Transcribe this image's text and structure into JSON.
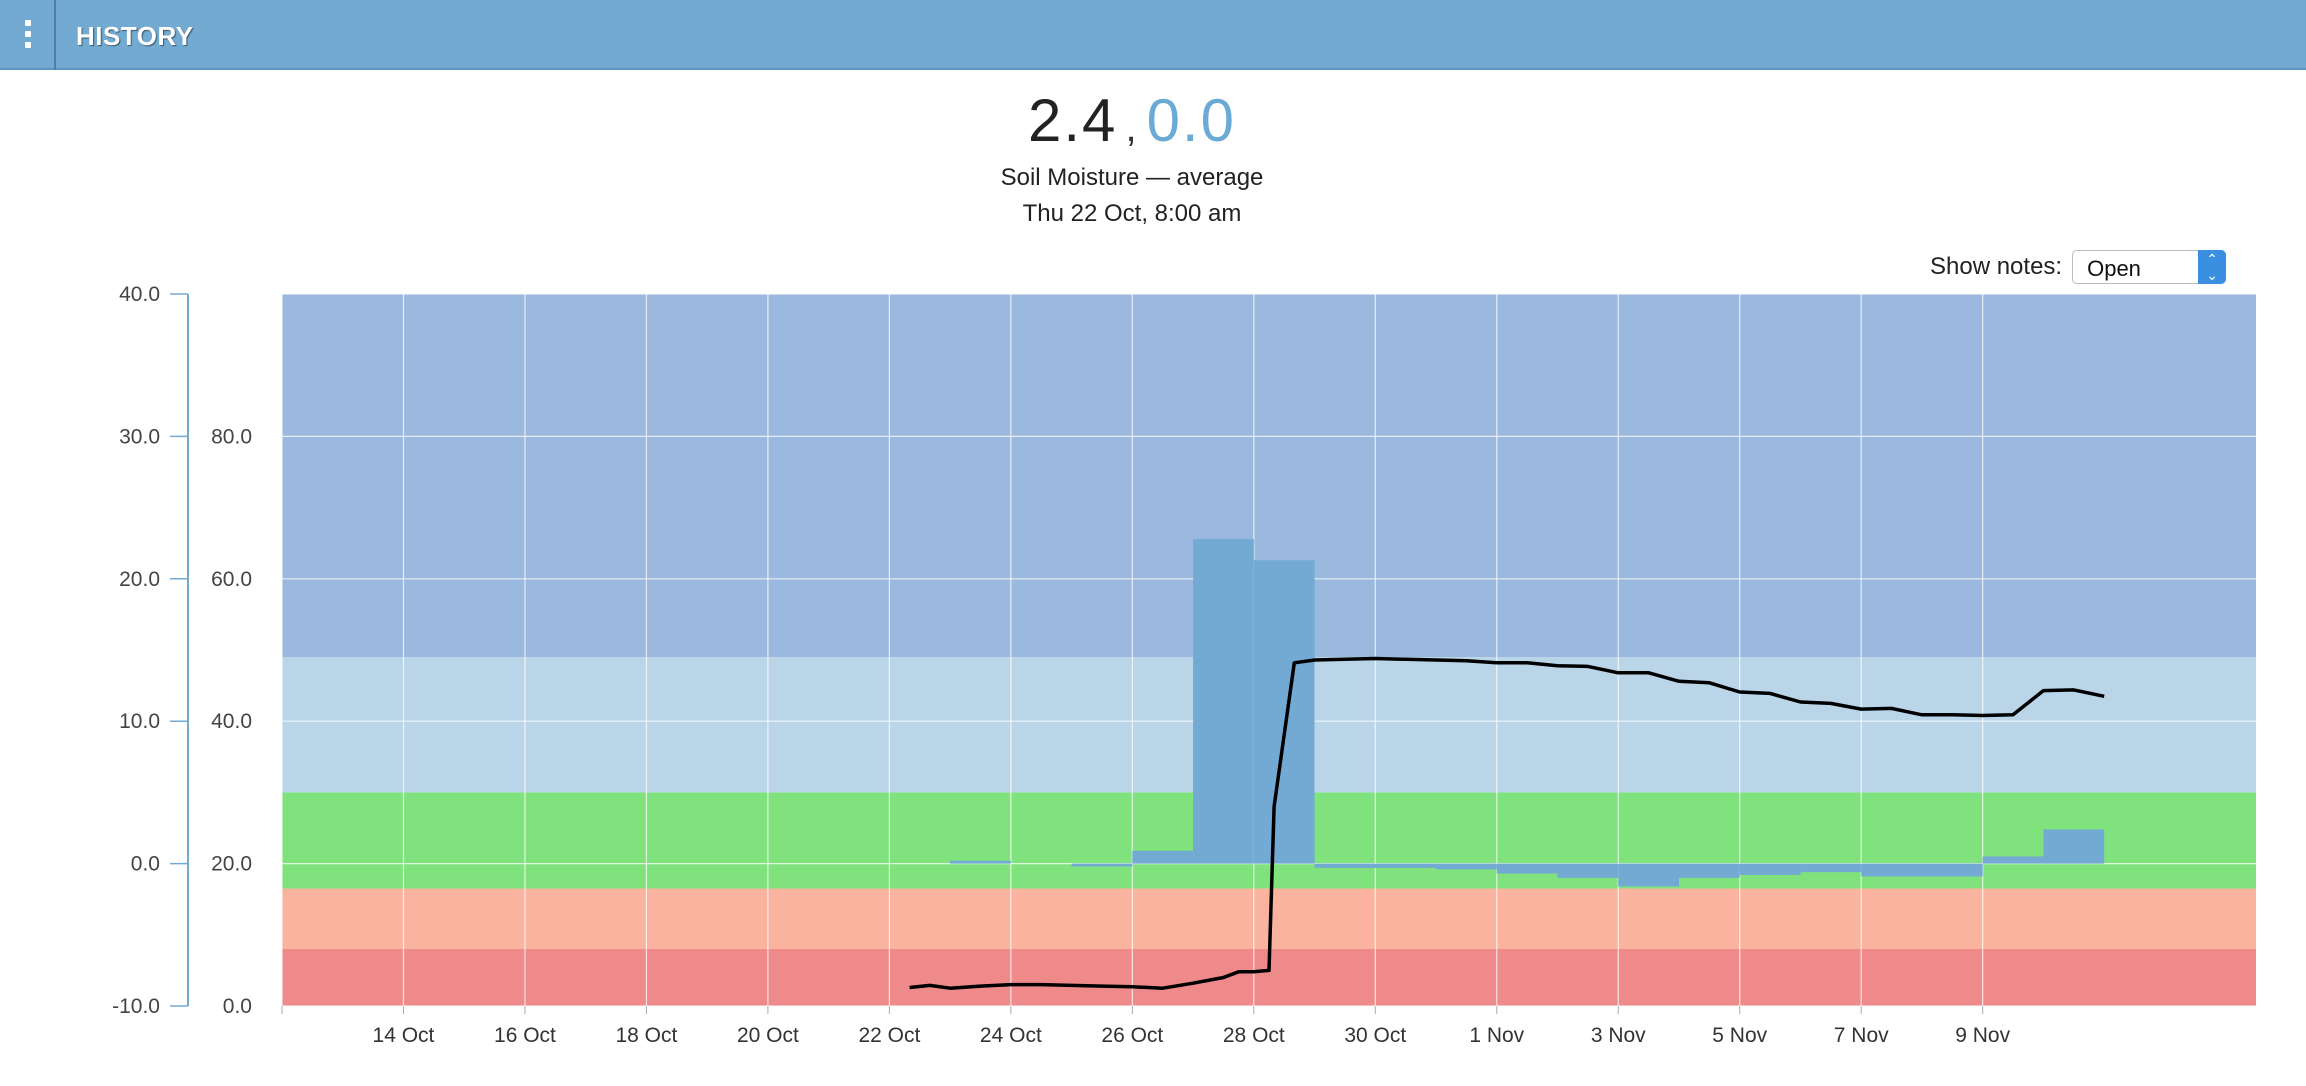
{
  "header": {
    "title": "HISTORY",
    "menu_icon": "vertical-dots-icon"
  },
  "readout": {
    "primary": "2.4",
    "separator": ",",
    "secondary": "0.0",
    "secondary_color": "#6aaad6"
  },
  "subtitle": {
    "sensor": "Soil Moisture — average",
    "timestamp": "Thu 22 Oct, 8:00 am"
  },
  "notes": {
    "label": "Show notes:",
    "selected": "Open"
  },
  "chart_data": {
    "type": "bar",
    "x_tick_labels": [
      "14 Oct",
      "16 Oct",
      "18 Oct",
      "20 Oct",
      "22 Oct",
      "24 Oct",
      "26 Oct",
      "28 Oct",
      "30 Oct",
      "1 Nov",
      "3 Nov",
      "5 Nov",
      "7 Nov",
      "9 Nov"
    ],
    "left_axis": {
      "ticks": [
        "40.0",
        "30.0",
        "20.0",
        "10.0",
        "0.0",
        "-10.0"
      ],
      "ylim": [
        -10,
        40
      ]
    },
    "right_axis": {
      "ticks": [
        "80.0",
        "60.0",
        "40.0",
        "20.0",
        "0.0"
      ],
      "ylim": [
        0,
        100
      ]
    },
    "bands": [
      {
        "from": 0,
        "to": 8,
        "color": "#ef8a8a"
      },
      {
        "from": 8,
        "to": 16.5,
        "color": "#f9b39f"
      },
      {
        "from": 16.5,
        "to": 30,
        "color": "#7fe27d"
      },
      {
        "from": 30,
        "to": 49,
        "color": "#bad5e8"
      },
      {
        "from": 49,
        "to": 100,
        "color": "#9bb9de"
      }
    ],
    "series": [
      {
        "type": "bar",
        "axis": "left",
        "color": "#72aad3",
        "values": [
          {
            "start": "2015-10-23",
            "end": "2015-10-24",
            "value": 0.2
          },
          {
            "start": "2015-10-25",
            "end": "2015-10-26",
            "value": -0.2
          },
          {
            "start": "2015-10-26",
            "end": "2015-10-27",
            "value": 0.9
          },
          {
            "start": "2015-10-27",
            "end": "2015-10-28",
            "value": 22.8
          },
          {
            "start": "2015-10-28",
            "end": "2015-10-29",
            "value": 21.3
          },
          {
            "start": "2015-10-29",
            "end": "2015-10-31",
            "value": -0.3
          },
          {
            "start": "2015-10-31",
            "end": "2015-11-01",
            "value": -0.4
          },
          {
            "start": "2015-11-01",
            "end": "2015-11-02",
            "value": -0.7
          },
          {
            "start": "2015-11-02",
            "end": "2015-11-03",
            "value": -1.0
          },
          {
            "start": "2015-11-03",
            "end": "2015-11-04",
            "value": -1.6
          },
          {
            "start": "2015-11-04",
            "end": "2015-11-05",
            "value": -1.0
          },
          {
            "start": "2015-11-05",
            "end": "2015-11-06",
            "value": -0.8
          },
          {
            "start": "2015-11-06",
            "end": "2015-11-07",
            "value": -0.6
          },
          {
            "start": "2015-11-07",
            "end": "2015-11-09",
            "value": -0.9
          },
          {
            "start": "2015-11-09",
            "end": "2015-11-10",
            "value": 0.5
          },
          {
            "start": "2015-11-10",
            "end": "2015-11-11",
            "value": 2.4
          }
        ]
      },
      {
        "type": "line",
        "axis": "right",
        "color": "#000000",
        "points": [
          [
            "2015-10-22T08:00",
            2.6
          ],
          [
            "2015-10-22T16:00",
            2.9
          ],
          [
            "2015-10-23T00:00",
            2.5
          ],
          [
            "2015-10-23T12:00",
            2.8
          ],
          [
            "2015-10-24T00:00",
            3.0
          ],
          [
            "2015-10-24T12:00",
            3.0
          ],
          [
            "2015-10-25T00:00",
            2.9
          ],
          [
            "2015-10-25T12:00",
            2.8
          ],
          [
            "2015-10-26T00:00",
            2.7
          ],
          [
            "2015-10-26T12:00",
            2.5
          ],
          [
            "2015-10-27T00:00",
            3.2
          ],
          [
            "2015-10-27T12:00",
            4.0
          ],
          [
            "2015-10-27T18:00",
            4.8
          ],
          [
            "2015-10-28T00:00",
            4.8
          ],
          [
            "2015-10-28T06:00",
            5.0
          ],
          [
            "2015-10-28T08:00",
            28.0
          ],
          [
            "2015-10-28T16:00",
            48.2
          ],
          [
            "2015-10-29T00:00",
            48.6
          ],
          [
            "2015-10-29T12:00",
            48.7
          ],
          [
            "2015-10-30T00:00",
            48.8
          ],
          [
            "2015-10-30T12:00",
            48.7
          ],
          [
            "2015-10-31T00:00",
            48.6
          ],
          [
            "2015-10-31T12:00",
            48.5
          ],
          [
            "2015-11-01T00:00",
            48.2
          ],
          [
            "2015-11-01T12:00",
            48.2
          ],
          [
            "2015-11-02T00:00",
            47.8
          ],
          [
            "2015-11-02T12:00",
            47.7
          ],
          [
            "2015-11-03T00:00",
            46.8
          ],
          [
            "2015-11-03T12:00",
            46.8
          ],
          [
            "2015-11-04T00:00",
            45.6
          ],
          [
            "2015-11-04T12:00",
            45.4
          ],
          [
            "2015-11-05T00:00",
            44.1
          ],
          [
            "2015-11-05T12:00",
            43.9
          ],
          [
            "2015-11-06T00:00",
            42.7
          ],
          [
            "2015-11-06T12:00",
            42.5
          ],
          [
            "2015-11-07T00:00",
            41.7
          ],
          [
            "2015-11-07T12:00",
            41.8
          ],
          [
            "2015-11-08T00:00",
            40.9
          ],
          [
            "2015-11-08T12:00",
            40.9
          ],
          [
            "2015-11-09T00:00",
            40.8
          ],
          [
            "2015-11-09T12:00",
            40.9
          ],
          [
            "2015-11-09T18:00",
            42.6
          ],
          [
            "2015-11-10T00:00",
            44.3
          ],
          [
            "2015-11-10T12:00",
            44.4
          ],
          [
            "2015-11-11T00:00",
            43.5
          ]
        ]
      }
    ],
    "grid": true
  }
}
